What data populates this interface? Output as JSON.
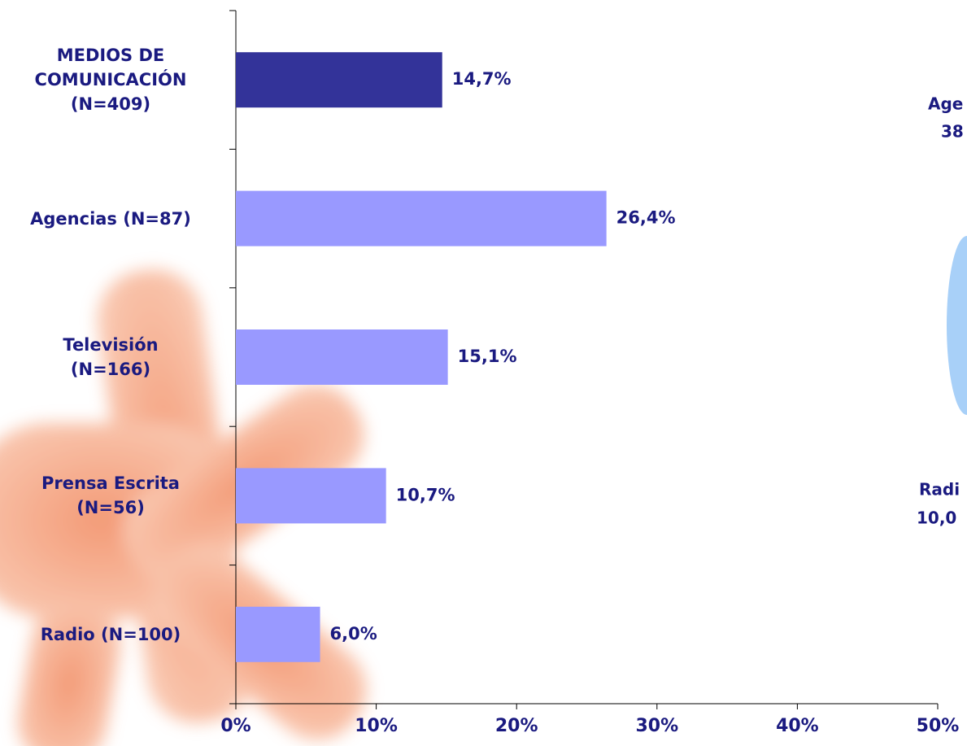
{
  "chart_data": {
    "type": "bar",
    "orientation": "horizontal",
    "categories": [
      "MEDIOS DE\nCOMUNICACIÓN\n(N=409)",
      "Agencias (N=87)",
      "Televisión\n(N=166)",
      "Prensa Escrita\n(N=56)",
      "Radio (N=100)"
    ],
    "values": [
      14.7,
      26.4,
      15.1,
      10.7,
      6.0
    ],
    "value_labels": [
      "14,7%",
      "26,4%",
      "15,1%",
      "10,7%",
      "6,0%"
    ],
    "colors": [
      "#333399",
      "#9999ff",
      "#9999ff",
      "#9999ff",
      "#9999ff"
    ],
    "xlim": [
      0,
      50
    ],
    "xticks": [
      {
        "value": 0,
        "label": "0%"
      },
      {
        "value": 10,
        "label": "10%"
      },
      {
        "value": 20,
        "label": "20%"
      },
      {
        "value": 30,
        "label": "30%"
      },
      {
        "value": 40,
        "label": "40%"
      },
      {
        "value": 50,
        "label": "50%"
      }
    ],
    "annotations": [
      "Age",
      "38",
      "Radi",
      "10,0"
    ]
  }
}
